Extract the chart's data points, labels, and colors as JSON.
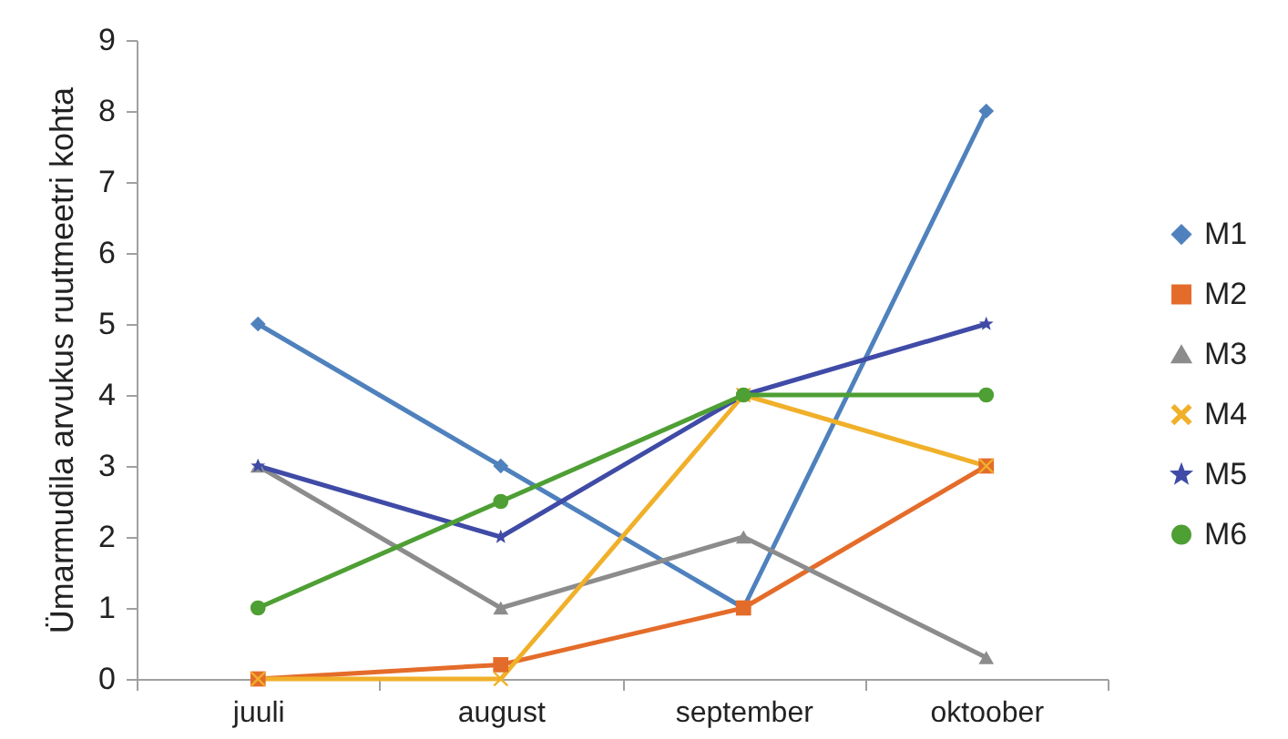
{
  "chart_data": {
    "type": "line",
    "ylabel": "Ümarmudila arvukus ruutmeetri kohta",
    "categories": [
      "juuli",
      "august",
      "september",
      "oktoober"
    ],
    "series": [
      {
        "name": "M1",
        "color": "#4f81bd",
        "marker": "diamond",
        "values": [
          5,
          3,
          1,
          8
        ]
      },
      {
        "name": "M2",
        "color": "#e46c2a",
        "marker": "square",
        "values": [
          0,
          0.2,
          1,
          3
        ]
      },
      {
        "name": "M3",
        "color": "#8c8c8c",
        "marker": "triangle",
        "values": [
          3,
          1,
          2,
          0.3
        ]
      },
      {
        "name": "M4",
        "color": "#f0b02a",
        "marker": "cross",
        "values": [
          0,
          0,
          4,
          3
        ]
      },
      {
        "name": "M5",
        "color": "#3f4ba6",
        "marker": "star",
        "values": [
          3,
          2,
          4,
          5
        ]
      },
      {
        "name": "M6",
        "color": "#4e9f34",
        "marker": "circle",
        "values": [
          1,
          2.5,
          4,
          4
        ]
      }
    ],
    "ylim": [
      0,
      9
    ],
    "yticks": [
      0,
      1,
      2,
      3,
      4,
      5,
      6,
      7,
      8,
      9
    ],
    "grid": false,
    "legend": "right",
    "line_style": "solid"
  }
}
